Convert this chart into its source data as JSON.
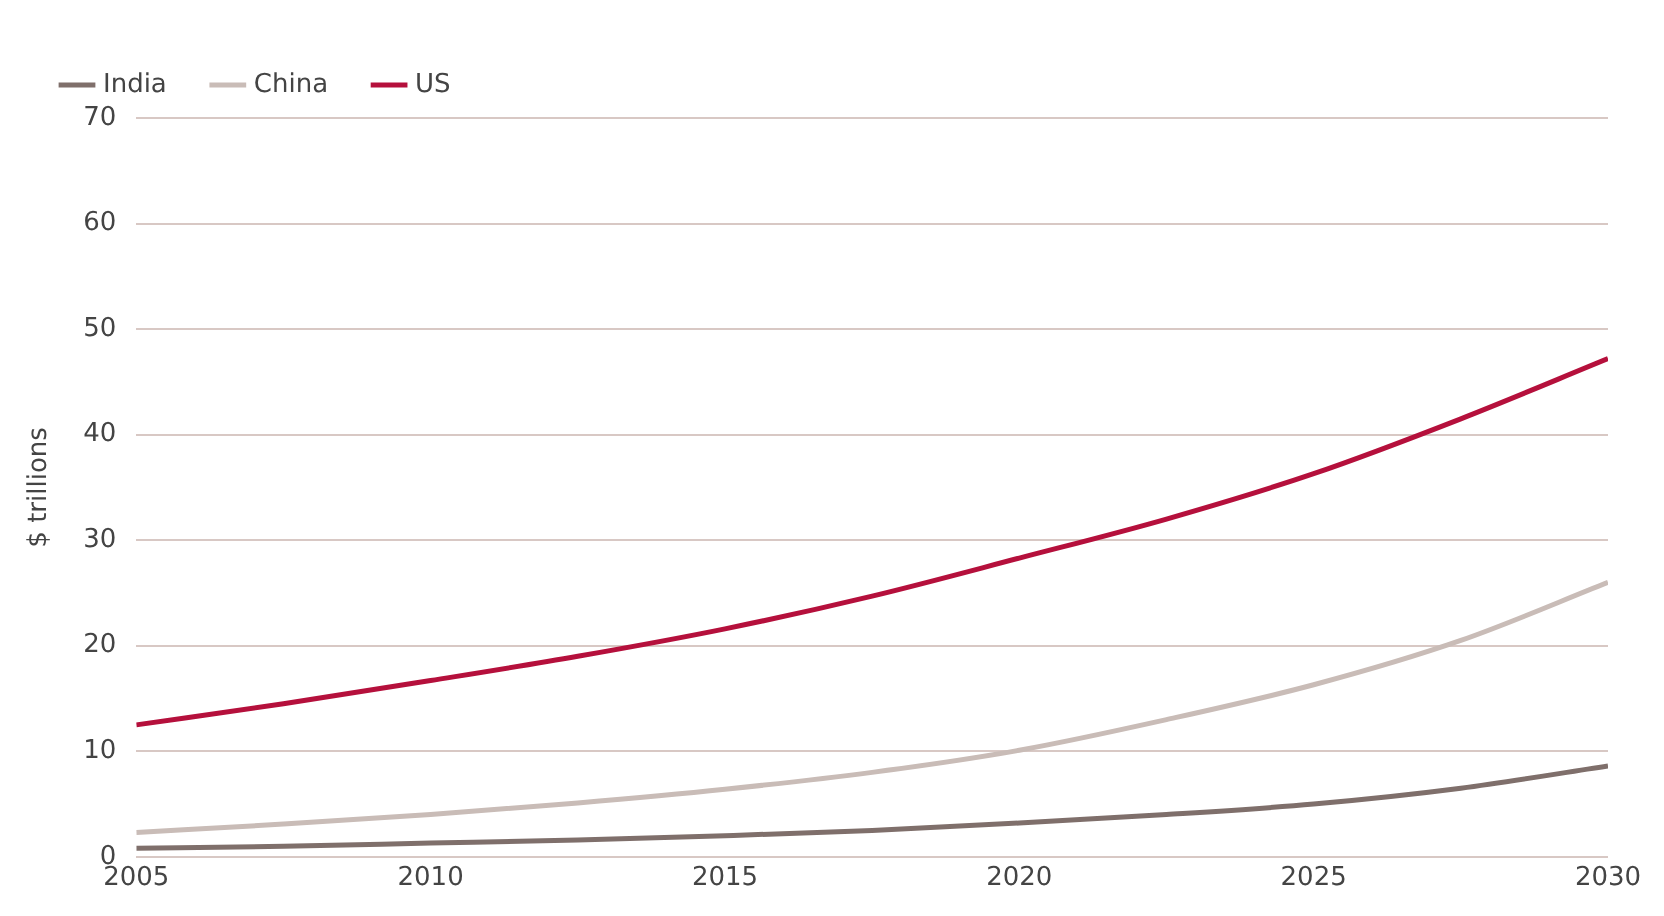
{
  "chart_data": {
    "type": "line",
    "ylabel": "$ trillions",
    "x": [
      2005,
      2007.5,
      2010,
      2012.5,
      2015,
      2017.5,
      2020,
      2022.5,
      2025,
      2027.5,
      2030
    ],
    "series": [
      {
        "name": "India",
        "color": "#7f6f6b",
        "values": [
          0.8,
          1.0,
          1.3,
          1.6,
          2.0,
          2.5,
          3.2,
          4.0,
          5.0,
          6.5,
          8.6
        ]
      },
      {
        "name": "China",
        "color": "#c9bcb7",
        "values": [
          2.3,
          3.1,
          4.0,
          5.1,
          6.4,
          8.0,
          10.1,
          13,
          16.3,
          20.5,
          26
        ]
      },
      {
        "name": "US",
        "color": "#b5103c",
        "values": [
          12.5,
          14.5,
          16.7,
          19,
          21.6,
          24.7,
          28.3,
          32,
          36.3,
          41.5,
          47.2
        ]
      }
    ],
    "xlim": [
      2005,
      2030
    ],
    "xticks": [
      2005,
      2010,
      2015,
      2020,
      2025,
      2030
    ],
    "ylim": [
      0,
      70
    ],
    "yticks": [
      0,
      10,
      20,
      30,
      40,
      50,
      60,
      70
    ],
    "grid": "y",
    "legend": "top left",
    "marker": "none",
    "line_style": "solid"
  }
}
